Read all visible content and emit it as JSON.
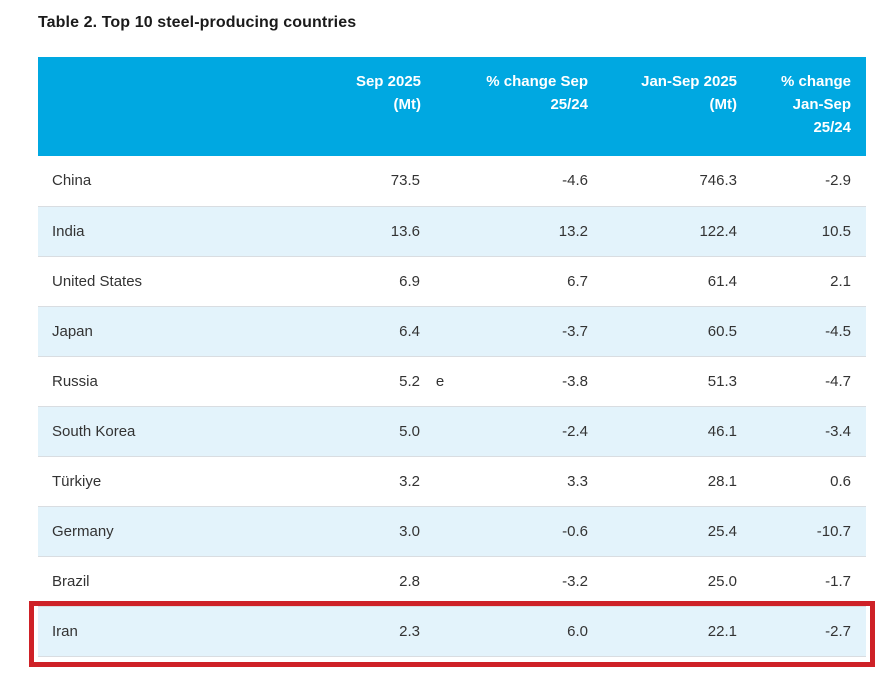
{
  "title": "Table 2. Top 10 steel-producing countries",
  "colors": {
    "header_bg": "#00a8e1",
    "row_alt_bg": "#e3f3fb",
    "row_separator": "#d9dde1",
    "highlight_border": "#ce2127",
    "header_text": "#ffffff",
    "body_text": "#333333",
    "title_text": "#1a1a1a"
  },
  "table": {
    "columns": [
      {
        "key": "country",
        "label": ""
      },
      {
        "key": "sep_2025_mt",
        "label": "Sep 2025\n(Mt)"
      },
      {
        "key": "pct_change_sep",
        "label": "% change Sep\n25/24"
      },
      {
        "key": "jan_sep_2025_mt",
        "label": "Jan-Sep 2025\n(Mt)"
      },
      {
        "key": "pct_change_jan_sep",
        "label": "% change\nJan-Sep\n25/24"
      }
    ],
    "rows": [
      {
        "country": "China",
        "sep_2025_mt": "73.5",
        "marker": "",
        "pct_change_sep": "-4.6",
        "jan_sep_2025_mt": "746.3",
        "pct_change_jan_sep": "-2.9",
        "highlighted": false
      },
      {
        "country": "India",
        "sep_2025_mt": "13.6",
        "marker": "",
        "pct_change_sep": "13.2",
        "jan_sep_2025_mt": "122.4",
        "pct_change_jan_sep": "10.5",
        "highlighted": false
      },
      {
        "country": "United States",
        "sep_2025_mt": "6.9",
        "marker": "",
        "pct_change_sep": "6.7",
        "jan_sep_2025_mt": "61.4",
        "pct_change_jan_sep": "2.1",
        "highlighted": false
      },
      {
        "country": "Japan",
        "sep_2025_mt": "6.4",
        "marker": "",
        "pct_change_sep": "-3.7",
        "jan_sep_2025_mt": "60.5",
        "pct_change_jan_sep": "-4.5",
        "highlighted": false
      },
      {
        "country": "Russia",
        "sep_2025_mt": "5.2",
        "marker": "e",
        "pct_change_sep": "-3.8",
        "jan_sep_2025_mt": "51.3",
        "pct_change_jan_sep": "-4.7",
        "highlighted": false
      },
      {
        "country": "South Korea",
        "sep_2025_mt": "5.0",
        "marker": "",
        "pct_change_sep": "-2.4",
        "jan_sep_2025_mt": "46.1",
        "pct_change_jan_sep": "-3.4",
        "highlighted": false
      },
      {
        "country": "Türkiye",
        "sep_2025_mt": "3.2",
        "marker": "",
        "pct_change_sep": "3.3",
        "jan_sep_2025_mt": "28.1",
        "pct_change_jan_sep": "0.6",
        "highlighted": false
      },
      {
        "country": "Germany",
        "sep_2025_mt": "3.0",
        "marker": "",
        "pct_change_sep": "-0.6",
        "jan_sep_2025_mt": "25.4",
        "pct_change_jan_sep": "-10.7",
        "highlighted": false
      },
      {
        "country": "Brazil",
        "sep_2025_mt": "2.8",
        "marker": "",
        "pct_change_sep": "-3.2",
        "jan_sep_2025_mt": "25.0",
        "pct_change_jan_sep": "-1.7",
        "highlighted": false
      },
      {
        "country": "Iran",
        "sep_2025_mt": "2.3",
        "marker": "",
        "pct_change_sep": "6.0",
        "jan_sep_2025_mt": "22.1",
        "pct_change_jan_sep": "-2.7",
        "highlighted": true
      }
    ]
  }
}
